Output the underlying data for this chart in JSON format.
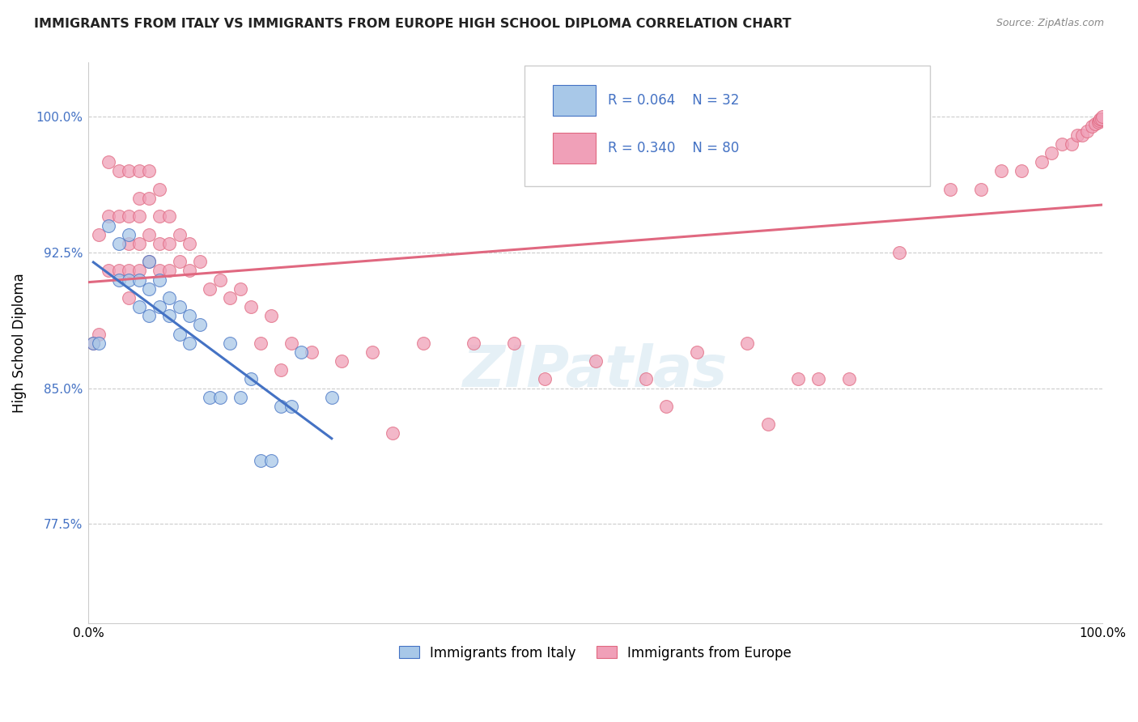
{
  "title": "IMMIGRANTS FROM ITALY VS IMMIGRANTS FROM EUROPE HIGH SCHOOL DIPLOMA CORRELATION CHART",
  "source": "Source: ZipAtlas.com",
  "xlabel": "",
  "ylabel": "High School Diploma",
  "xlim": [
    0.0,
    1.0
  ],
  "ylim": [
    0.72,
    1.03
  ],
  "yticks": [
    0.775,
    0.85,
    0.925,
    1.0
  ],
  "ytick_labels": [
    "77.5%",
    "85.0%",
    "92.5%",
    "100.0%"
  ],
  "xticks": [
    0.0,
    1.0
  ],
  "xtick_labels": [
    "0.0%",
    "100.0%"
  ],
  "legend_italy_R": "0.064",
  "legend_italy_N": "32",
  "legend_europe_R": "0.340",
  "legend_europe_N": "80",
  "color_italy": "#a8c8e8",
  "color_europe": "#f0a0b8",
  "line_color_italy": "#4472c4",
  "line_color_europe": "#e06880",
  "watermark": "ZIPatlas",
  "italy_x": [
    0.005,
    0.01,
    0.02,
    0.03,
    0.03,
    0.04,
    0.04,
    0.05,
    0.05,
    0.06,
    0.06,
    0.06,
    0.07,
    0.07,
    0.08,
    0.08,
    0.09,
    0.09,
    0.1,
    0.1,
    0.11,
    0.12,
    0.13,
    0.14,
    0.15,
    0.16,
    0.17,
    0.18,
    0.19,
    0.2,
    0.21,
    0.24
  ],
  "italy_y": [
    0.875,
    0.875,
    0.94,
    0.91,
    0.93,
    0.91,
    0.935,
    0.895,
    0.91,
    0.89,
    0.905,
    0.92,
    0.895,
    0.91,
    0.89,
    0.9,
    0.88,
    0.895,
    0.875,
    0.89,
    0.885,
    0.845,
    0.845,
    0.875,
    0.845,
    0.855,
    0.81,
    0.81,
    0.84,
    0.84,
    0.87,
    0.845
  ],
  "europe_x": [
    0.005,
    0.01,
    0.01,
    0.02,
    0.02,
    0.02,
    0.03,
    0.03,
    0.03,
    0.04,
    0.04,
    0.04,
    0.04,
    0.04,
    0.05,
    0.05,
    0.05,
    0.05,
    0.05,
    0.06,
    0.06,
    0.06,
    0.06,
    0.07,
    0.07,
    0.07,
    0.07,
    0.08,
    0.08,
    0.08,
    0.09,
    0.09,
    0.1,
    0.1,
    0.11,
    0.12,
    0.13,
    0.14,
    0.15,
    0.16,
    0.17,
    0.18,
    0.19,
    0.2,
    0.22,
    0.25,
    0.28,
    0.3,
    0.33,
    0.38,
    0.42,
    0.45,
    0.5,
    0.55,
    0.57,
    0.6,
    0.65,
    0.67,
    0.7,
    0.72,
    0.75,
    0.8,
    0.85,
    0.88,
    0.9,
    0.92,
    0.94,
    0.95,
    0.96,
    0.97,
    0.975,
    0.98,
    0.985,
    0.99,
    0.993,
    0.996,
    0.997,
    0.998,
    0.999,
    1.0
  ],
  "europe_y": [
    0.875,
    0.935,
    0.88,
    0.975,
    0.945,
    0.915,
    0.97,
    0.945,
    0.915,
    0.97,
    0.945,
    0.93,
    0.915,
    0.9,
    0.97,
    0.955,
    0.945,
    0.93,
    0.915,
    0.97,
    0.955,
    0.935,
    0.92,
    0.96,
    0.945,
    0.93,
    0.915,
    0.945,
    0.93,
    0.915,
    0.935,
    0.92,
    0.93,
    0.915,
    0.92,
    0.905,
    0.91,
    0.9,
    0.905,
    0.895,
    0.875,
    0.89,
    0.86,
    0.875,
    0.87,
    0.865,
    0.87,
    0.825,
    0.875,
    0.875,
    0.875,
    0.855,
    0.865,
    0.855,
    0.84,
    0.87,
    0.875,
    0.83,
    0.855,
    0.855,
    0.855,
    0.925,
    0.96,
    0.96,
    0.97,
    0.97,
    0.975,
    0.98,
    0.985,
    0.985,
    0.99,
    0.99,
    0.992,
    0.995,
    0.996,
    0.997,
    0.998,
    0.999,
    0.999,
    1.0
  ]
}
